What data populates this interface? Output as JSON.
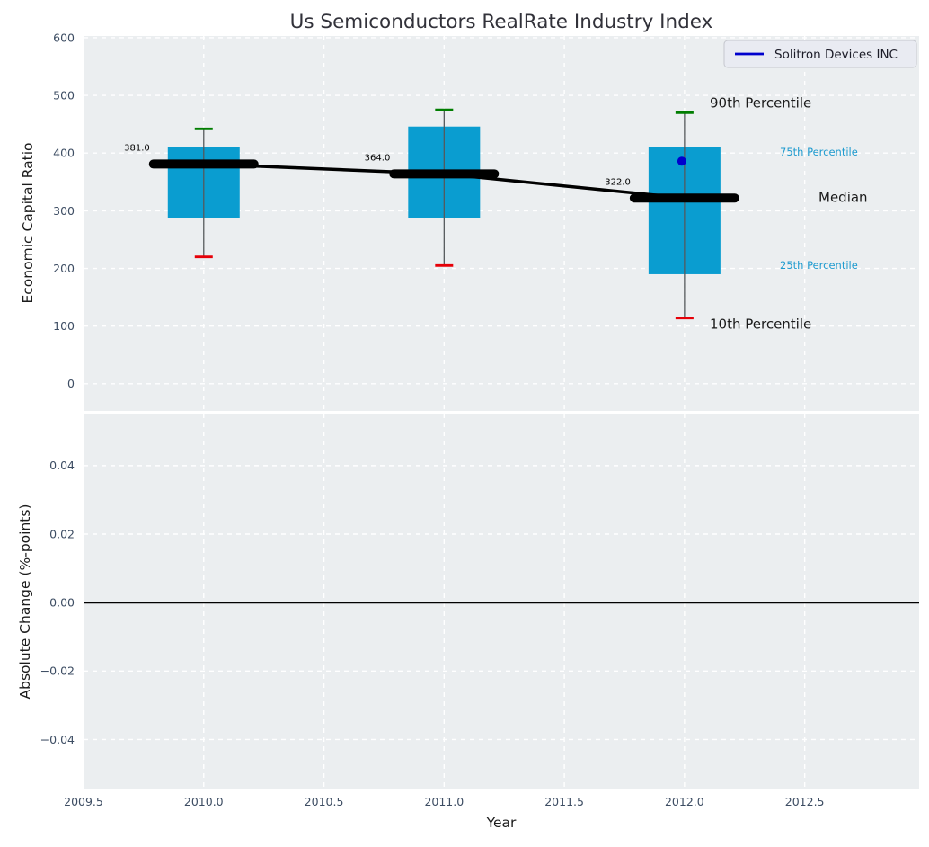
{
  "title": "Us Semiconductors RealRate Industry Index",
  "legend": {
    "label": "Solitron Devices INC",
    "line_color": "#0000cd"
  },
  "colors": {
    "plot_bg": "#ebeef0",
    "grid": "#ffffff",
    "box_fill": "#0a9dd0",
    "whisker_line": "#55595c",
    "p90_cap": "#007d00",
    "p10_cap": "#e60008",
    "median_line": "#000000",
    "company_point": "#0000cd",
    "tick_label": "#3d4d63",
    "title_color": "#32323a",
    "axis_label": "#1c1c1c",
    "annotation_dark": "#1a1a1a",
    "annotation_cyan": "#1f9bcf",
    "value_label": "#000000",
    "zero_line": "#000000",
    "legend_bg": "#e9ebf2",
    "legend_border": "#c5c7ce"
  },
  "chart_data": {
    "type": "boxplot-timeseries",
    "title": "Us Semiconductors RealRate Industry Index",
    "xlabel": "Year",
    "xlim": [
      2009.5,
      2012.976
    ],
    "x_ticks": {
      "values": [
        2009.5,
        2010.0,
        2010.5,
        2011.0,
        2011.5,
        2012.0,
        2012.5
      ],
      "labels": [
        "2009.5",
        "2010.0",
        "2010.5",
        "2011.0",
        "2011.5",
        "2012.0",
        "2012.5"
      ]
    },
    "panels": [
      {
        "name": "economic-capital-ratio",
        "ylabel": "Economic Capital Ratio",
        "ylim": [
          -47,
          603
        ],
        "y_ticks": {
          "values": [
            600,
            500,
            400,
            300,
            200,
            100,
            0
          ],
          "labels": [
            "600",
            "500",
            "400",
            "300",
            "200",
            "100",
            "0"
          ]
        },
        "boxes": [
          {
            "year": 2010,
            "p10": 220,
            "p25": 287,
            "median": 381,
            "p75": 410,
            "p90": 442,
            "label": "381.0"
          },
          {
            "year": 2011,
            "p10": 205,
            "p25": 287,
            "median": 364,
            "p75": 446,
            "p90": 475,
            "label": "364.0"
          },
          {
            "year": 2012,
            "p10": 114,
            "p25": 190,
            "median": 322,
            "p75": 410,
            "p90": 470,
            "label": "322.0"
          }
        ],
        "company_point": {
          "name": "Solitron Devices INC",
          "year": 2012,
          "value": 386
        },
        "annotations": [
          {
            "text": "90th Percentile",
            "ref": "p90",
            "size": "large"
          },
          {
            "text": "75th Percentile",
            "ref": "p75",
            "size": "small"
          },
          {
            "text": "Median",
            "ref": "median",
            "size": "large"
          },
          {
            "text": "25th Percentile",
            "ref": "p25",
            "size": "small"
          },
          {
            "text": "10th Percentile",
            "ref": "p10",
            "size": "large"
          }
        ]
      },
      {
        "name": "absolute-change",
        "ylabel": "Absolute Change (%-points)",
        "ylim": [
          -0.0546,
          0.0552
        ],
        "y_ticks": {
          "values": [
            0.04,
            0.02,
            0,
            -0.02,
            -0.04
          ],
          "labels": [
            "0.04",
            "0.02",
            "0.00",
            "−0.02",
            "−0.04"
          ]
        },
        "zero_line": 0
      }
    ]
  }
}
